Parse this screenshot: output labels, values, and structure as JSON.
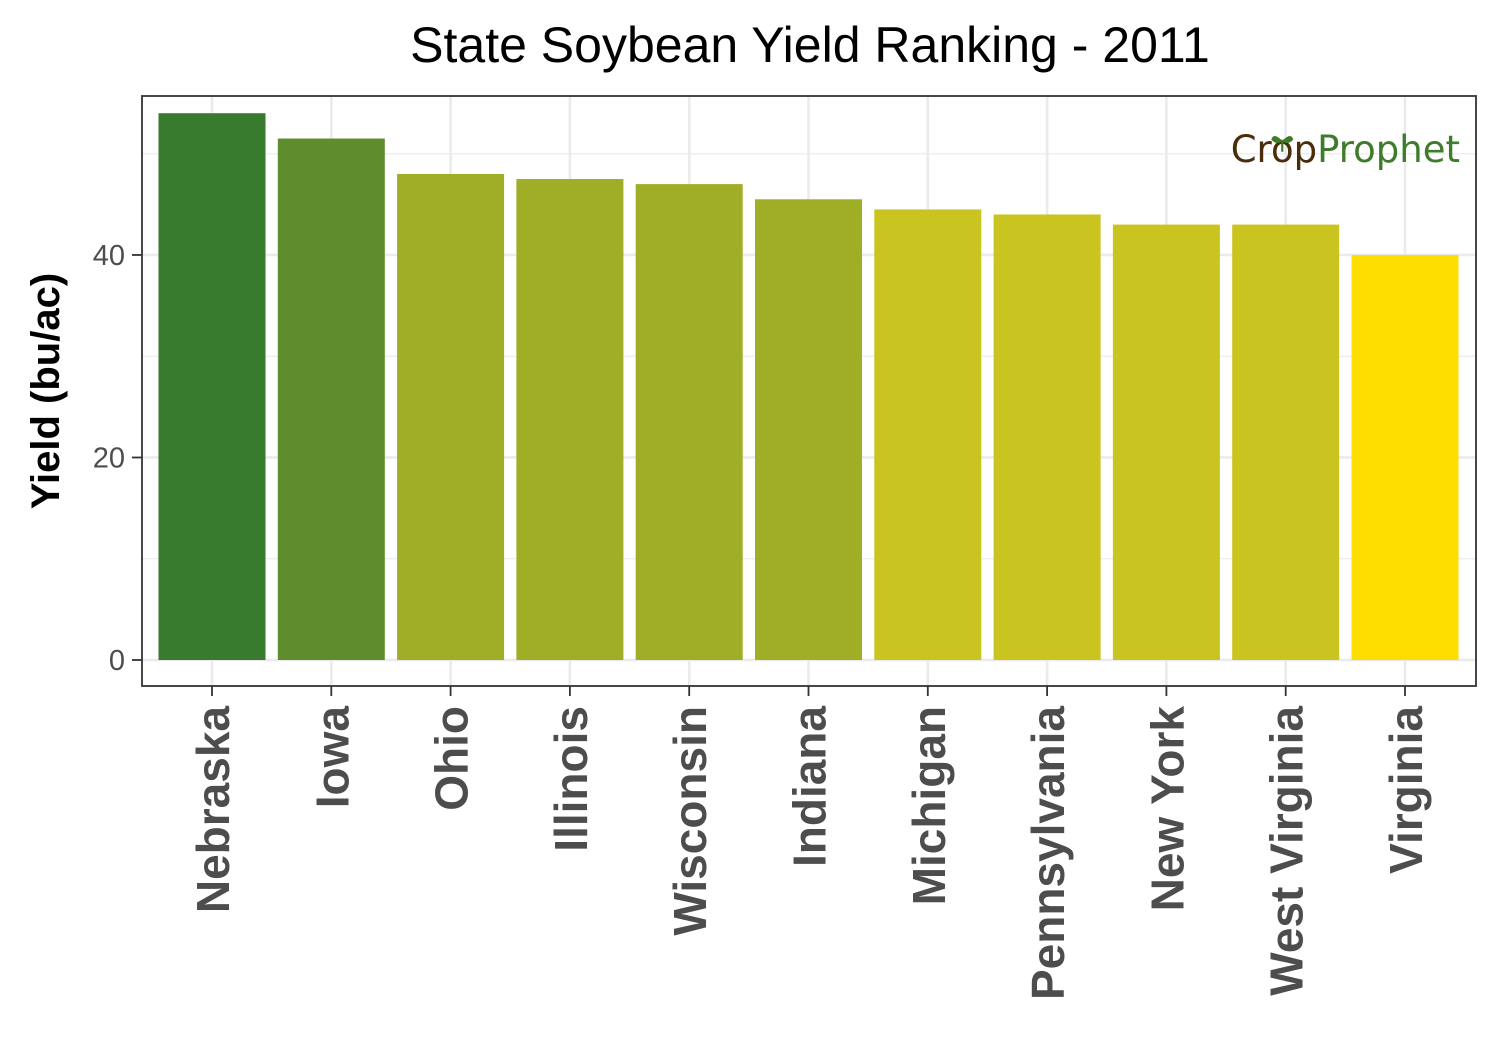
{
  "chart_data": {
    "type": "bar",
    "title": "State Soybean Yield Ranking - 2011",
    "xlabel": "",
    "ylabel": "Yield (bu/ac)",
    "ylim": [
      0,
      55.7
    ],
    "yticks": [
      0,
      20,
      40
    ],
    "ytick_labels": [
      "0",
      "20",
      "40"
    ],
    "grid": true,
    "categories": [
      "Nebraska",
      "Iowa",
      "Ohio",
      "Illinois",
      "Wisconsin",
      "Indiana",
      "Michigan",
      "Pennsylvania",
      "New York",
      "West Virginia",
      "Virginia"
    ],
    "values": [
      54,
      51.5,
      48,
      47.5,
      47,
      45.5,
      44.5,
      44,
      43,
      43,
      40
    ],
    "colors": [
      "#387a2e",
      "#5f8d2d",
      "#9fae26",
      "#9fae26",
      "#9fae26",
      "#9fae26",
      "#c9c41f",
      "#c9c41f",
      "#c9c41f",
      "#c9c41f",
      "#fedd00"
    ]
  },
  "branding": {
    "part1": "Cr",
    "part2": "p",
    "part3": "Prophet",
    "color_dark": "#4a2e0c",
    "color_green": "#3e7c2b",
    "leaf_icon": "sprout-icon"
  }
}
